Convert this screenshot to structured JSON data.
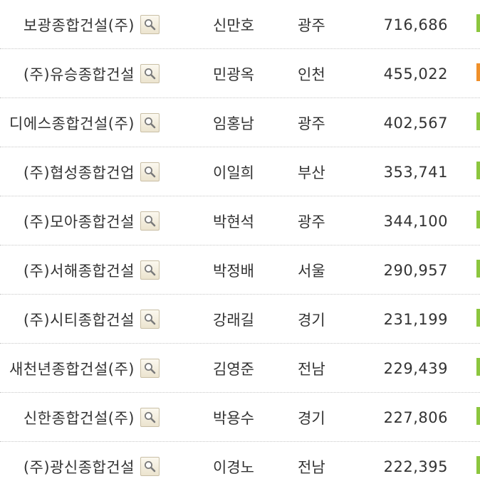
{
  "rows": [
    {
      "company": "보광종합건설(주)",
      "ceo": "신만호",
      "region": "광주",
      "amount": "716,686",
      "bar_color": "#8cc63e"
    },
    {
      "company": "(주)유승종합건설",
      "ceo": "민광옥",
      "region": "인천",
      "amount": "455,022",
      "bar_color": "#f0902a"
    },
    {
      "company": "디에스종합건설(주)",
      "ceo": "임홍남",
      "region": "광주",
      "amount": "402,567",
      "bar_color": "#8cc63e"
    },
    {
      "company": "(주)협성종합건업",
      "ceo": "이일희",
      "region": "부산",
      "amount": "353,741",
      "bar_color": "#8cc63e"
    },
    {
      "company": "(주)모아종합건설",
      "ceo": "박현석",
      "region": "광주",
      "amount": "344,100",
      "bar_color": "#8cc63e"
    },
    {
      "company": "(주)서해종합건설",
      "ceo": "박정배",
      "region": "서울",
      "amount": "290,957",
      "bar_color": "#8cc63e"
    },
    {
      "company": "(주)시티종합건설",
      "ceo": "강래길",
      "region": "경기",
      "amount": "231,199",
      "bar_color": "#8cc63e"
    },
    {
      "company": "새천년종합건설(주)",
      "ceo": "김영준",
      "region": "전남",
      "amount": "229,439",
      "bar_color": "#8cc63e"
    },
    {
      "company": "신한종합건설(주)",
      "ceo": "박용수",
      "region": "경기",
      "amount": "227,806",
      "bar_color": "#8cc63e"
    },
    {
      "company": "(주)광신종합건설",
      "ceo": "이경노",
      "region": "전남",
      "amount": "222,395",
      "bar_color": "#8cc63e"
    }
  ],
  "icons": {
    "search": "magnifier-icon"
  }
}
